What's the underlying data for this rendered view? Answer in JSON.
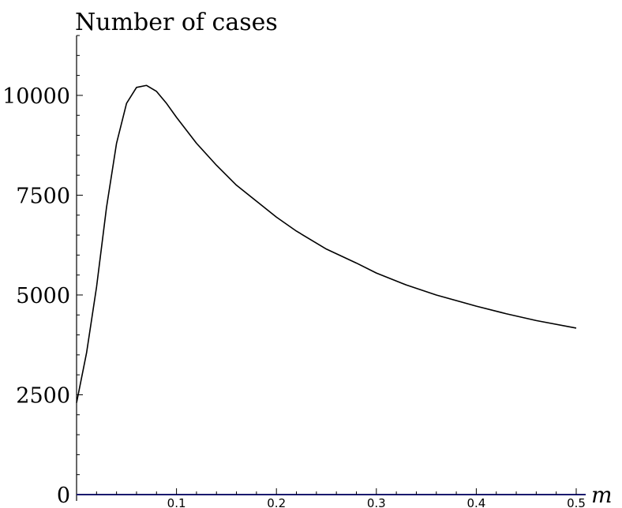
{
  "chart_data": {
    "type": "line",
    "title": "",
    "xlabel": "m",
    "ylabel": "Number of cases",
    "xlim": [
      0,
      0.5
    ],
    "ylim": [
      0,
      11500
    ],
    "grid": false,
    "xticks": [
      {
        "value": 0.1,
        "label": "0.1"
      },
      {
        "value": 0.2,
        "label": "0.2"
      },
      {
        "value": 0.3,
        "label": "0.3"
      },
      {
        "value": 0.4,
        "label": "0.4"
      },
      {
        "value": 0.5,
        "label": "0.5"
      }
    ],
    "yticks": [
      {
        "value": 0,
        "label": "0"
      },
      {
        "value": 2500,
        "label": "2500"
      },
      {
        "value": 5000,
        "label": "5000"
      },
      {
        "value": 7500,
        "label": "7500"
      },
      {
        "value": 10000,
        "label": "10000"
      }
    ],
    "series": [
      {
        "x": [
          0.0,
          0.01,
          0.02,
          0.03,
          0.04,
          0.05,
          0.06,
          0.07,
          0.08,
          0.09,
          0.1,
          0.12,
          0.14,
          0.16,
          0.18,
          0.2,
          0.22,
          0.25,
          0.28,
          0.3,
          0.33,
          0.36,
          0.4,
          0.43,
          0.46,
          0.5
        ],
        "y": [
          2300,
          3550,
          5200,
          7200,
          8800,
          9800,
          10200,
          10250,
          10100,
          9800,
          9450,
          8800,
          8250,
          7750,
          7350,
          6950,
          6600,
          6150,
          5800,
          5550,
          5250,
          5000,
          4720,
          4530,
          4360,
          4170
        ]
      }
    ]
  }
}
